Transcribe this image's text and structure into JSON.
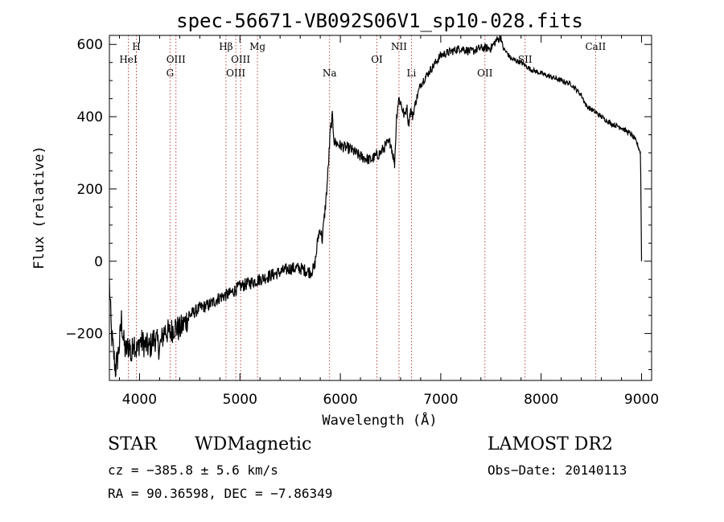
{
  "chart_data": {
    "type": "line",
    "title": "spec-56671-VB092S06V1_sp10-028.fits",
    "xlabel": "Wavelength (Å)",
    "ylabel": "Flux (relative)",
    "xlim": [
      3700,
      9100
    ],
    "ylim": [
      -330,
      625
    ],
    "xticks": [
      4000,
      5000,
      6000,
      7000,
      8000,
      9000
    ],
    "yticks": [
      -200,
      0,
      200,
      400,
      600
    ],
    "grid": false,
    "lines": [
      {
        "name": "HeI",
        "x": 3889,
        "row": 1
      },
      {
        "name": "H",
        "x": 3968,
        "row": 0
      },
      {
        "name": "G",
        "x": 4304,
        "row": 2
      },
      {
        "name": "OIII",
        "x": 4363,
        "row": 1
      },
      {
        "name": "Hβ",
        "x": 4861,
        "row": 0
      },
      {
        "name": "OIII",
        "x": 4959,
        "row": 2
      },
      {
        "name": "OIII",
        "x": 5007,
        "row": 1
      },
      {
        "name": "Mg",
        "x": 5175,
        "row": 0
      },
      {
        "name": "Na",
        "x": 5893,
        "row": 2
      },
      {
        "name": "OI",
        "x": 6364,
        "row": 1
      },
      {
        "name": "NII",
        "x": 6584,
        "row": 0
      },
      {
        "name": "Li",
        "x": 6708,
        "row": 2
      },
      {
        "name": "OII",
        "x": 7440,
        "row": 2
      },
      {
        "name": "SII",
        "x": 7840,
        "row": 1
      },
      {
        "name": "CaII",
        "x": 8542,
        "row": 0
      }
    ],
    "series": [
      {
        "x": [
          3700,
          3720,
          3740,
          3760,
          3780,
          3800,
          3820,
          3840,
          3860,
          3880,
          3900,
          3920,
          3940,
          3960,
          3980,
          4000,
          4050,
          4100,
          4150,
          4200,
          4250,
          4300,
          4350,
          4400,
          4500,
          4600,
          4700,
          4800,
          4900,
          5000,
          5100,
          5200,
          5300,
          5400,
          5500,
          5600,
          5700,
          5740,
          5760,
          5780,
          5800,
          5820,
          5840,
          5860,
          5880,
          5900,
          5920,
          5940,
          6000,
          6100,
          6200,
          6300,
          6400,
          6450,
          6500,
          6540,
          6560,
          6580,
          6600,
          6620,
          6640,
          6660,
          6680,
          6700,
          6720,
          6750,
          6800,
          6900,
          7000,
          7100,
          7200,
          7300,
          7400,
          7500,
          7550,
          7600,
          7620,
          7650,
          7700,
          7800,
          7900,
          8000,
          8100,
          8200,
          8300,
          8400,
          8450,
          8500,
          8600,
          8700,
          8800,
          8900,
          8950,
          8990,
          9000
        ],
        "y": [
          -60,
          -200,
          -250,
          -300,
          -270,
          -230,
          -160,
          -220,
          -250,
          -240,
          -230,
          -270,
          -210,
          -240,
          -250,
          -220,
          -230,
          -240,
          -210,
          -240,
          -190,
          -200,
          -180,
          -190,
          -150,
          -130,
          -120,
          -100,
          -90,
          -70,
          -60,
          -50,
          -40,
          -30,
          -20,
          -20,
          -30,
          -20,
          20,
          70,
          90,
          60,
          120,
          180,
          260,
          360,
          400,
          330,
          320,
          310,
          290,
          280,
          300,
          320,
          330,
          270,
          400,
          450,
          440,
          420,
          400,
          430,
          380,
          420,
          400,
          440,
          490,
          530,
          570,
          580,
          590,
          580,
          590,
          590,
          610,
          620,
          590,
          580,
          560,
          550,
          530,
          520,
          510,
          500,
          490,
          460,
          430,
          420,
          400,
          380,
          370,
          350,
          330,
          300,
          0
        ]
      }
    ]
  },
  "footer": {
    "class_label": "STAR",
    "subclass": "WDMagnetic",
    "survey": "LAMOST DR2",
    "cz": "cz = −385.8 ± 5.6 km/s",
    "obs_date": "Obs−Date: 20140113",
    "radec": "RA =  90.36598, DEC =  −7.86349"
  }
}
